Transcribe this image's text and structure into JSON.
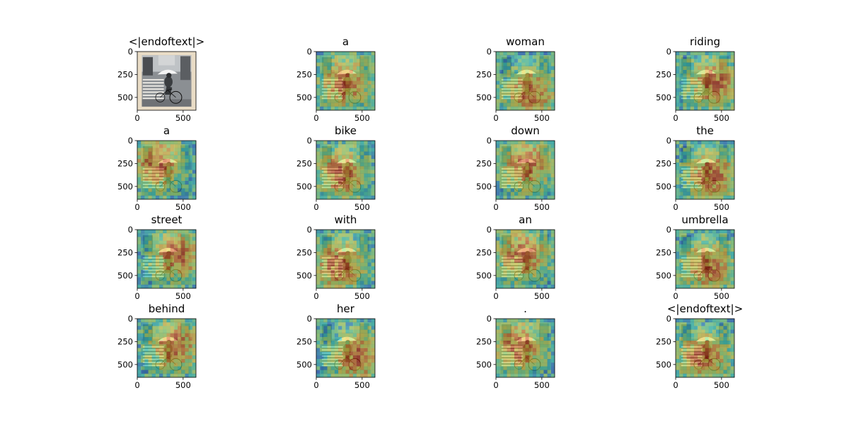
{
  "figure": {
    "panel_titles": [
      "<|endoftext|>",
      "a",
      "woman",
      "riding",
      "a",
      "bike",
      "down",
      "the",
      "street",
      "with",
      "an",
      "umbrella",
      "behind",
      "her",
      ".",
      "<|endoftext|>"
    ]
  },
  "chart_data": {
    "type": "heatmap",
    "grid": {
      "rows": 4,
      "cols": 4
    },
    "panels": [
      {
        "title": "<|endoftext|>",
        "kind": "photo"
      },
      {
        "title": "a",
        "kind": "attention-overlay"
      },
      {
        "title": "woman",
        "kind": "attention-overlay"
      },
      {
        "title": "riding",
        "kind": "attention-overlay"
      },
      {
        "title": "a",
        "kind": "attention-overlay"
      },
      {
        "title": "bike",
        "kind": "attention-overlay"
      },
      {
        "title": "down",
        "kind": "attention-overlay"
      },
      {
        "title": "the",
        "kind": "attention-overlay"
      },
      {
        "title": "street",
        "kind": "attention-overlay"
      },
      {
        "title": "with",
        "kind": "attention-overlay"
      },
      {
        "title": "an",
        "kind": "attention-overlay"
      },
      {
        "title": "umbrella",
        "kind": "attention-overlay"
      },
      {
        "title": "behind",
        "kind": "attention-overlay"
      },
      {
        "title": "her",
        "kind": "attention-overlay"
      },
      {
        "title": ".",
        "kind": "attention-overlay"
      },
      {
        "title": "<|endoftext|>",
        "kind": "attention-overlay"
      }
    ],
    "x_ticks": [
      0,
      500
    ],
    "y_ticks": [
      0,
      250,
      500
    ],
    "xlim": [
      0,
      640
    ],
    "ylim": [
      640,
      0
    ],
    "colormap": [
      "#30123b",
      "#1f5fd6",
      "#2bd9c2",
      "#a3f26a",
      "#f8e43a",
      "#f57c1f",
      "#c42503"
    ]
  }
}
